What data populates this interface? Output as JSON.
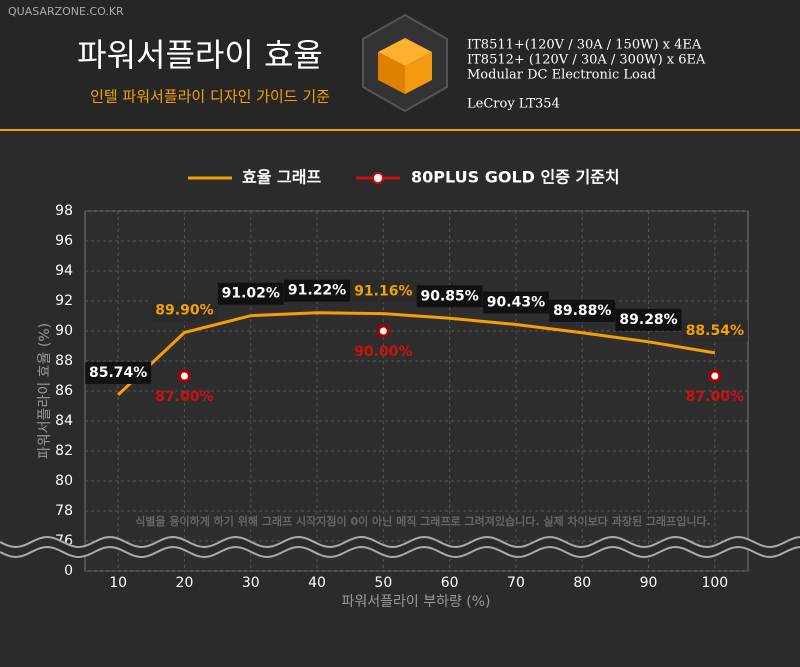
{
  "site": "QUASARZONE.CO.KR",
  "header": {
    "title": "파워서플라이 효율",
    "subtitle": "인텔 파워서플라이 디자인 가이드 기준",
    "specs": [
      "IT8511+(120V / 30A / 150W) x 4EA",
      "IT8512+ (120V / 30A / 300W) x 6EA",
      "Modular DC Electronic Load",
      "LeCroy LT354"
    ]
  },
  "chart_data": {
    "type": "line",
    "xlabel": "파워서플라이 부하량 (%)",
    "ylabel": "파워서플라이 효율 (%)",
    "annotation": "식별을 용이하게 하기 위해 그래프 시작지점이 0이 아닌 메직 그래프로 그려져있습니다. 실제 차이보다 과장된 그래프입니다.",
    "xlim": [
      5,
      105
    ],
    "xticks": [
      10,
      20,
      30,
      40,
      50,
      60,
      70,
      80,
      90,
      100
    ],
    "ylim": [
      0,
      98
    ],
    "yticks": [
      0,
      76,
      78,
      80,
      82,
      84,
      86,
      88,
      90,
      92,
      94,
      96,
      98
    ],
    "grid": true,
    "series": [
      {
        "name": "효율 그래프",
        "color": "#f5a000",
        "x": [
          10,
          20,
          30,
          40,
          50,
          60,
          70,
          80,
          90,
          100
        ],
        "values": [
          85.74,
          89.9,
          91.02,
          91.22,
          91.16,
          90.85,
          90.43,
          89.88,
          89.28,
          88.54
        ],
        "value_labels": [
          "85.74%",
          "89.90%",
          "91.02%",
          "91.22%",
          "91.16%",
          "90.85%",
          "90.43%",
          "89.88%",
          "89.28%",
          "88.54%"
        ]
      },
      {
        "name": "80PLUS GOLD 인증 기준치",
        "color": "#cc1111",
        "x": [
          20,
          50,
          100
        ],
        "values": [
          87.0,
          90.0,
          87.0
        ],
        "value_labels": [
          "87.00%",
          "90.00%",
          "87.00%"
        ]
      }
    ]
  }
}
